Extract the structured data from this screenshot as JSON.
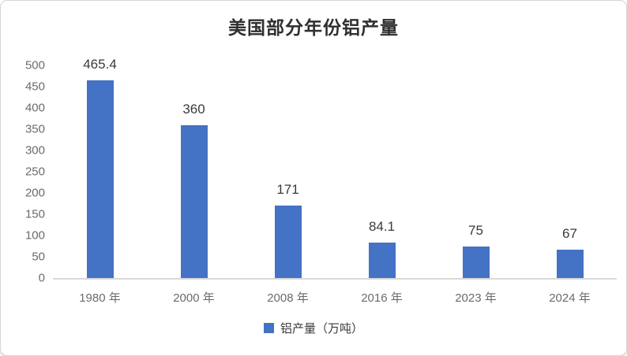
{
  "chart_data": {
    "type": "bar",
    "title": "美国部分年份铝产量",
    "categories": [
      "1980 年",
      "2000 年",
      "2008 年",
      "2016 年",
      "2023 年",
      "2024 年"
    ],
    "values": [
      465.4,
      360,
      171,
      84.1,
      75,
      67
    ],
    "value_labels": [
      "465.4",
      "360",
      "171",
      "84.1",
      "75",
      "67"
    ],
    "legend": "铝产量（万吨）",
    "y_ticks": [
      0,
      50,
      100,
      150,
      200,
      250,
      300,
      350,
      400,
      450,
      500
    ],
    "ylim": [
      0,
      500
    ],
    "grid": false,
    "legend_position": "bottom",
    "bar_color": "#4472C4"
  },
  "colors": {
    "bar": "#4472C4",
    "axis_text": "#6b6b6b",
    "data_label_text": "#3a3a3a",
    "baseline": "#d9d9d9",
    "card_border": "#d6d6d6"
  }
}
